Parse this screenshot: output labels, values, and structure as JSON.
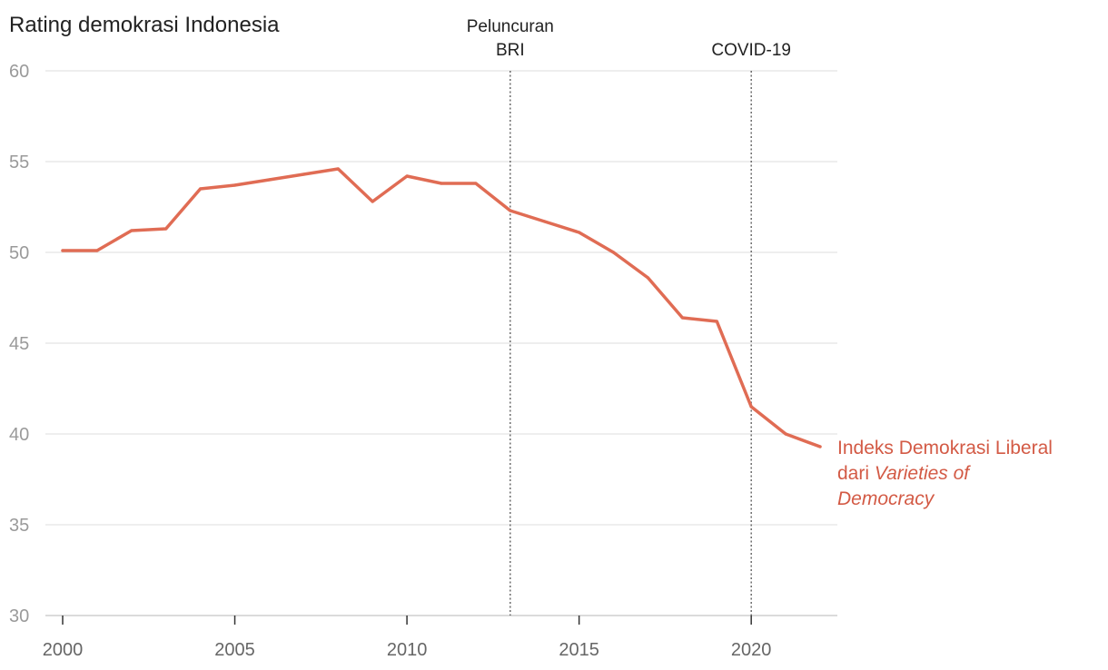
{
  "chart_data": {
    "type": "line",
    "title": "Rating demokrasi Indonesia",
    "xlabel": "",
    "ylabel": "",
    "xlim": [
      2000,
      2022
    ],
    "ylim": [
      30,
      60
    ],
    "x_ticks": [
      2000,
      2005,
      2010,
      2015,
      2020
    ],
    "y_ticks": [
      30,
      35,
      40,
      45,
      50,
      55,
      60
    ],
    "grid": "horizontal",
    "series": [
      {
        "label_line1": "Indeks Demokrasi Liberal",
        "label_line2_plain": "dari",
        "label_line2_italic": "Varieties of",
        "label_line3_italic": "Democracy",
        "color": "#e06c54",
        "label_color": "#d35a45",
        "x": [
          2000,
          2001,
          2002,
          2003,
          2004,
          2005,
          2006,
          2007,
          2008,
          2009,
          2010,
          2011,
          2012,
          2013,
          2014,
          2015,
          2016,
          2017,
          2018,
          2019,
          2020,
          2021,
          2022
        ],
        "values": [
          50.1,
          50.1,
          51.2,
          51.3,
          53.5,
          53.7,
          54.0,
          54.3,
          54.6,
          52.8,
          54.2,
          53.8,
          53.8,
          52.3,
          51.7,
          51.1,
          50.0,
          48.6,
          46.4,
          46.2,
          41.5,
          40.0,
          39.3
        ]
      }
    ],
    "annotations": [
      {
        "x": 2013,
        "line1": "Peluncuran",
        "line2": "BRI"
      },
      {
        "x": 2020,
        "line1": "",
        "line2": "COVID-19"
      }
    ]
  }
}
